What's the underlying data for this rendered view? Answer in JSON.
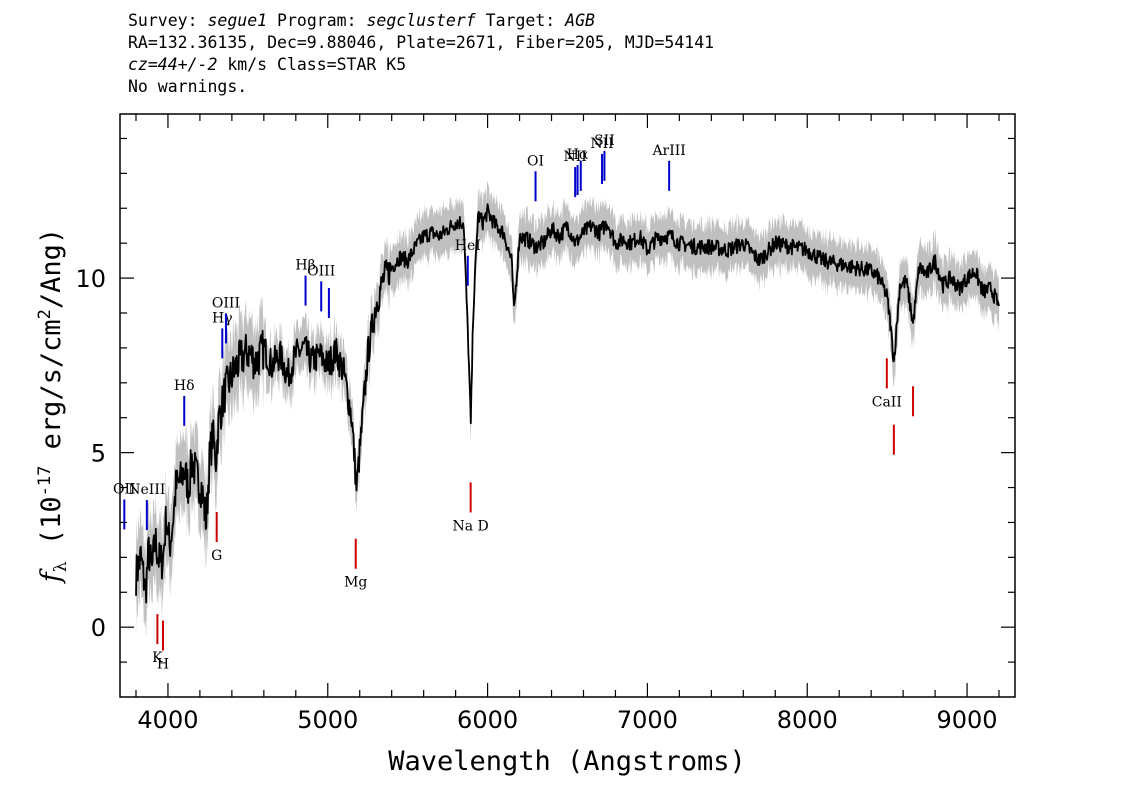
{
  "header": {
    "line1": {
      "survey_label": "Survey:",
      "survey": "segue1",
      "program_label": "Program:",
      "program": "segclusterf",
      "target_label": "Target:",
      "target": "AGB"
    },
    "line2": "RA=132.36135, Dec=9.88046, Plate=2671, Fiber=205, MJD=54141",
    "line3": {
      "cz": "cz=44+/-2",
      "rest": " km/s Class=STAR K5"
    },
    "line4": "No warnings."
  },
  "colors": {
    "flux": "#000000",
    "error_band": "#c0c0c0",
    "emission_line": "#0000cc",
    "absorption_line": "#cc0000",
    "axes": "#000000"
  },
  "chart_data": {
    "type": "line",
    "xlabel": "Wavelength (Angstroms)",
    "ylabel": "f_λ (10^-17 erg/s/cm^2/Ang)",
    "xlim": [
      3700,
      9300
    ],
    "ylim": [
      -2,
      14.7
    ],
    "x_ticks": [
      4000,
      5000,
      6000,
      7000,
      8000,
      9000
    ],
    "x_tick_labels": [
      "4000",
      "5000",
      "6000",
      "7000",
      "8000",
      "9000"
    ],
    "y_ticks": [
      0,
      5,
      10
    ],
    "y_tick_labels": [
      "0",
      "5",
      "10"
    ],
    "grid": false,
    "series": [
      {
        "style": "spectrum",
        "x": [
          3800,
          3830,
          3860,
          3880,
          3900,
          3920,
          3950,
          3970,
          3990,
          4010,
          4030,
          4050,
          4080,
          4100,
          4130,
          4150,
          4180,
          4210,
          4240,
          4260,
          4280,
          4300,
          4320,
          4340,
          4360,
          4380,
          4400,
          4430,
          4460,
          4500,
          4550,
          4600,
          4650,
          4700,
          4750,
          4800,
          4850,
          4900,
          4950,
          5000,
          5050,
          5100,
          5150,
          5180,
          5200,
          5250,
          5300,
          5350,
          5400,
          5450,
          5500,
          5550,
          5600,
          5650,
          5700,
          5750,
          5800,
          5850,
          5880,
          5895,
          5910,
          5940,
          5970,
          6000,
          6050,
          6100,
          6150,
          6165,
          6200,
          6250,
          6300,
          6350,
          6400,
          6450,
          6500,
          6550,
          6600,
          6650,
          6700,
          6750,
          6800,
          6850,
          6900,
          6950,
          7000,
          7050,
          7100,
          7150,
          7200,
          7300,
          7400,
          7500,
          7600,
          7700,
          7800,
          7900,
          8000,
          8100,
          8200,
          8300,
          8400,
          8450,
          8498,
          8520,
          8542,
          8580,
          8620,
          8662,
          8700,
          8750,
          8800,
          8850,
          8900,
          8950,
          9000,
          9050,
          9100,
          9150,
          9200
        ],
        "y": [
          1.5,
          2.0,
          1.0,
          2.2,
          1.6,
          2.5,
          1.8,
          2.0,
          3.2,
          2.3,
          3.0,
          4.0,
          4.2,
          4.5,
          4.0,
          4.8,
          4.3,
          4.0,
          3.0,
          4.8,
          5.5,
          4.8,
          6.0,
          6.4,
          6.8,
          7.0,
          7.2,
          7.5,
          7.7,
          7.9,
          7.6,
          8.0,
          7.5,
          7.8,
          7.2,
          7.8,
          8.0,
          7.6,
          7.8,
          7.5,
          7.9,
          7.3,
          6.0,
          4.0,
          5.0,
          7.8,
          9.2,
          10.0,
          10.3,
          10.6,
          10.5,
          10.9,
          11.2,
          11.3,
          11.2,
          11.4,
          11.6,
          11.6,
          8.0,
          5.8,
          9.0,
          11.8,
          11.6,
          11.9,
          11.5,
          11.3,
          10.5,
          9.0,
          11.2,
          11.1,
          10.9,
          11.0,
          11.4,
          11.2,
          11.5,
          11.0,
          11.3,
          11.5,
          11.3,
          11.6,
          11.0,
          11.1,
          11.0,
          11.2,
          10.8,
          11.1,
          11.2,
          11.2,
          11.0,
          10.9,
          10.9,
          10.8,
          11.0,
          10.5,
          11.0,
          10.9,
          10.8,
          10.5,
          10.4,
          10.3,
          10.2,
          10.0,
          9.5,
          8.7,
          7.6,
          9.8,
          9.9,
          8.7,
          10.3,
          10.1,
          10.5,
          9.8,
          10.0,
          9.7,
          10.0,
          10.2,
          9.6,
          9.7,
          9.2
        ]
      }
    ],
    "annotations": [
      {
        "label": "OII",
        "wavelength": 3727,
        "kind": "emission",
        "label_pos": "above"
      },
      {
        "label": "NeIII",
        "wavelength": 3868,
        "kind": "emission",
        "label_pos": "above"
      },
      {
        "label": "Hδ",
        "wavelength": 4102,
        "kind": "emission",
        "label_pos": "above"
      },
      {
        "label": "Hγ",
        "wavelength": 4340,
        "kind": "emission",
        "label_pos": "above"
      },
      {
        "label": "OIII",
        "wavelength": 4363,
        "kind": "emission",
        "label_pos": "above"
      },
      {
        "label": "Hβ",
        "wavelength": 4861,
        "kind": "emission",
        "label_pos": "above"
      },
      {
        "label": "OIII",
        "wavelength": 4959,
        "kind": "emission",
        "label_pos": "above"
      },
      {
        "label": "OIII",
        "wavelength": 5007,
        "kind": "emission",
        "label_pos": "none"
      },
      {
        "label": "HeI",
        "wavelength": 5876,
        "kind": "emission",
        "label_pos": "above"
      },
      {
        "label": "OI",
        "wavelength": 6300,
        "kind": "emission",
        "label_pos": "above"
      },
      {
        "label": "NII",
        "wavelength": 6548,
        "kind": "emission",
        "label_pos": "above"
      },
      {
        "label": "Hα",
        "wavelength": 6563,
        "kind": "emission",
        "label_pos": "above"
      },
      {
        "label": "NII",
        "wavelength": 6583,
        "kind": "emission",
        "label_pos": "none"
      },
      {
        "label": "NII",
        "wavelength": 6716,
        "kind": "emission",
        "label_pos": "above"
      },
      {
        "label": "SII",
        "wavelength": 6731,
        "kind": "emission",
        "label_pos": "above"
      },
      {
        "label": "ArIII",
        "wavelength": 7136,
        "kind": "emission",
        "label_pos": "above"
      },
      {
        "label": "K",
        "wavelength": 3934,
        "kind": "absorption",
        "label_pos": "below"
      },
      {
        "label": "H",
        "wavelength": 3969,
        "kind": "absorption",
        "label_pos": "below"
      },
      {
        "label": "G",
        "wavelength": 4305,
        "kind": "absorption",
        "label_pos": "below"
      },
      {
        "label": "Mg",
        "wavelength": 5175,
        "kind": "absorption",
        "label_pos": "below"
      },
      {
        "label": "Na D",
        "wavelength": 5894,
        "kind": "absorption",
        "label_pos": "below"
      },
      {
        "label": "CaII",
        "wavelength": 8498,
        "kind": "absorption",
        "label_pos": "below"
      },
      {
        "label": "CaII",
        "wavelength": 8542,
        "kind": "absorption",
        "label_pos": "none"
      },
      {
        "label": "CaII",
        "wavelength": 8662,
        "kind": "absorption",
        "label_pos": "none"
      }
    ]
  }
}
